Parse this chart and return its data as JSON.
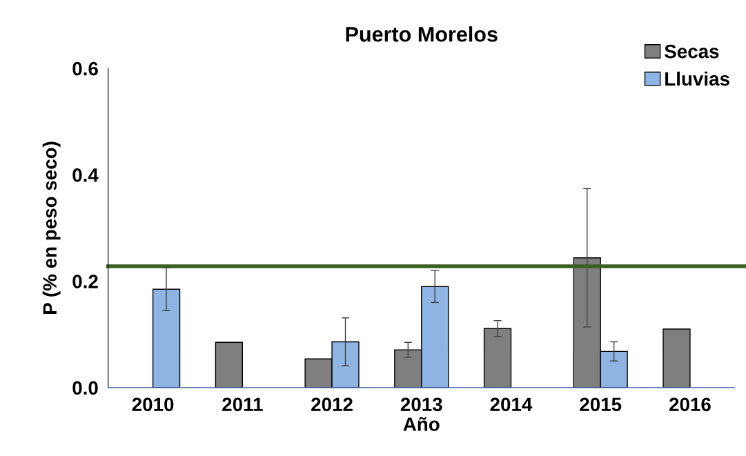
{
  "chart_data": {
    "type": "bar",
    "title": "Puerto Morelos",
    "xlabel": "Año",
    "ylabel": "P (% en peso seco)",
    "categories": [
      "2010",
      "2011",
      "2012",
      "2013",
      "2014",
      "2015",
      "2016"
    ],
    "series": [
      {
        "name": "Secas",
        "color": "#7f7f7f",
        "values": [
          null,
          0.085,
          0.054,
          0.071,
          0.111,
          0.244,
          0.11
        ],
        "errors": [
          null,
          null,
          null,
          0.014,
          0.015,
          0.13,
          null
        ]
      },
      {
        "name": "Lluvias",
        "color": "#8db4e2",
        "values": [
          0.185,
          null,
          0.086,
          0.19,
          null,
          0.068,
          null
        ],
        "errors": [
          0.04,
          null,
          0.045,
          0.03,
          null,
          0.018,
          null
        ]
      }
    ],
    "ylim": [
      0,
      0.6
    ],
    "yticks": [
      {
        "value": 0,
        "label": "0.0"
      },
      {
        "value": 0.2,
        "label": "0.2"
      },
      {
        "value": 0.4,
        "label": "0.4"
      },
      {
        "value": 0.6,
        "label": "0.6"
      }
    ],
    "ref_lines": [
      {
        "axis": "y",
        "value": 0.228,
        "color": "#3a5f24"
      }
    ],
    "grid": false,
    "legend": "top right"
  }
}
